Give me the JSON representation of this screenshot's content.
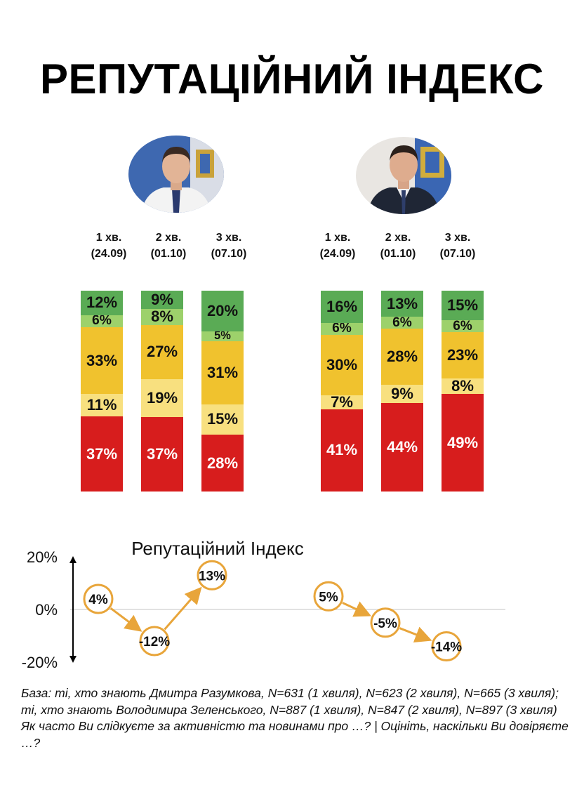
{
  "title": "РЕПУТАЦІЙНИЙ ІНДЕКС",
  "colors": {
    "dark_green": "#5aab55",
    "light_green": "#9dd16b",
    "orange": "#f0c22e",
    "light_yellow": "#f8e07f",
    "red": "#d71d1d",
    "circle": "#e8a53a"
  },
  "waves": [
    {
      "name": "1 хв.",
      "date": "(24.09)"
    },
    {
      "name": "2 хв.",
      "date": "(01.10)"
    },
    {
      "name": "3 хв.",
      "date": "(07.10)"
    }
  ],
  "chart_data": [
    {
      "type": "bar",
      "stacked": true,
      "person": "Дмитро Разумков",
      "categories": [
        "1 хв. (24.09)",
        "2 хв. (01.10)",
        "3 хв. (07.10)"
      ],
      "order_bottom_to_top": [
        "red",
        "light_yellow",
        "orange",
        "light_green",
        "dark_green"
      ],
      "series": [
        {
          "color": "#d71d1d",
          "values": [
            37,
            37,
            28
          ],
          "labels": [
            "37%",
            "37%",
            "28%"
          ]
        },
        {
          "color": "#f8e07f",
          "values": [
            11,
            19,
            15
          ],
          "labels": [
            "11%",
            "19%",
            "15%"
          ]
        },
        {
          "color": "#f0c22e",
          "values": [
            33,
            27,
            31
          ],
          "labels": [
            "33%",
            "27%",
            "31%"
          ]
        },
        {
          "color": "#9dd16b",
          "values": [
            6,
            8,
            5
          ],
          "labels": [
            "6%",
            "8%",
            "5%"
          ]
        },
        {
          "color": "#5aab55",
          "values": [
            12,
            9,
            20
          ],
          "labels": [
            "12%",
            "9%",
            "20%"
          ]
        }
      ]
    },
    {
      "type": "bar",
      "stacked": true,
      "person": "Володимир Зеленський",
      "categories": [
        "1 хв. (24.09)",
        "2 хв. (01.10)",
        "3 хв. (07.10)"
      ],
      "order_bottom_to_top": [
        "red",
        "light_yellow",
        "orange",
        "light_green",
        "dark_green"
      ],
      "series": [
        {
          "color": "#d71d1d",
          "values": [
            41,
            44,
            49
          ],
          "labels": [
            "41%",
            "44%",
            "49%"
          ]
        },
        {
          "color": "#f8e07f",
          "values": [
            7,
            9,
            8
          ],
          "labels": [
            "7%",
            "9%",
            "8%"
          ]
        },
        {
          "color": "#f0c22e",
          "values": [
            30,
            28,
            23
          ],
          "labels": [
            "30%",
            "28%",
            "23%"
          ]
        },
        {
          "color": "#9dd16b",
          "values": [
            6,
            6,
            6
          ],
          "labels": [
            "6%",
            "6%",
            "6%"
          ]
        },
        {
          "color": "#5aab55",
          "values": [
            16,
            13,
            15
          ],
          "labels": [
            "16%",
            "13%",
            "15%"
          ]
        }
      ]
    },
    {
      "type": "line",
      "title": "Репутаційний Індекс",
      "y_ticks": [
        "20%",
        "0%",
        "-20%"
      ],
      "ylim": [
        -20,
        20
      ],
      "series": [
        {
          "values": [
            4,
            -12,
            13
          ],
          "labels": [
            "4%",
            "-12%",
            "13%"
          ]
        },
        {
          "values": [
            5,
            -5,
            -14
          ],
          "labels": [
            "5%",
            "-5%",
            "-14%"
          ]
        }
      ]
    }
  ],
  "footnote": {
    "base": "База: ті, хто знають Дмитра Разумкова, N=631 (1 хвиля), N=623 (2 хвиля), N=665 (3 хвиля); ті, хто знають Володимира Зеленського, N=887 (1 хвиля), N=847 (2 хвиля), N=897 (3 хвиля)",
    "question": "Як часто Ви слідкуєте за активністю та новинами про …? | Оцініть, наскільки Ви довіряєте …?"
  }
}
